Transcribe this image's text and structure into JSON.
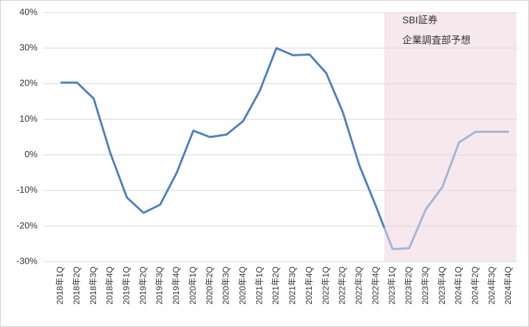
{
  "chart_data": {
    "type": "line",
    "annotations": [
      "SBI証券",
      "企業調査部予想"
    ],
    "categories": [
      "2018年1Q",
      "2018年2Q",
      "2018年3Q",
      "2018年4Q",
      "2019年1Q",
      "2019年2Q",
      "2019年3Q",
      "2019年4Q",
      "2020年1Q",
      "2020年2Q",
      "2020年3Q",
      "2020年4Q",
      "2021年1Q",
      "2021年2Q",
      "2021年3Q",
      "2021年4Q",
      "2022年1Q",
      "2022年2Q",
      "2022年3Q",
      "2022年4Q",
      "2023年1Q",
      "2023年2Q",
      "2023年3Q",
      "2023年4Q",
      "2024年1Q",
      "2024年2Q",
      "2024年3Q",
      "2024年4Q"
    ],
    "series": [
      {
        "color": "#4f7fbe",
        "values": [
          20.3,
          20.3,
          15.8,
          0.5,
          -12,
          -16.3,
          -14,
          -5,
          6.8,
          5,
          5.7,
          9.5,
          18,
          30,
          28,
          28.2,
          23,
          12,
          -3,
          -14.5,
          null,
          null,
          null,
          null,
          null,
          null,
          null,
          null
        ]
      },
      {
        "color": "#a3b4d6",
        "values": [
          null,
          null,
          null,
          null,
          null,
          null,
          null,
          null,
          null,
          null,
          null,
          null,
          null,
          null,
          null,
          null,
          null,
          null,
          null,
          null,
          -26.5,
          -26.2,
          -15.3,
          -9,
          3.5,
          6.5,
          6.5,
          6.5
        ]
      }
    ],
    "forecast_shade": "#f6e8ec",
    "ylim": [
      -30,
      40
    ],
    "yticks": [
      {
        "value": -30,
        "label": "-30%"
      },
      {
        "value": -20,
        "label": "-20%"
      },
      {
        "value": -10,
        "label": "-10%"
      },
      {
        "value": 0,
        "label": "0%"
      },
      {
        "value": 10,
        "label": "10%"
      },
      {
        "value": 20,
        "label": "20%"
      },
      {
        "value": 30,
        "label": "30%"
      },
      {
        "value": 40,
        "label": "40%"
      }
    ],
    "grid": true
  }
}
